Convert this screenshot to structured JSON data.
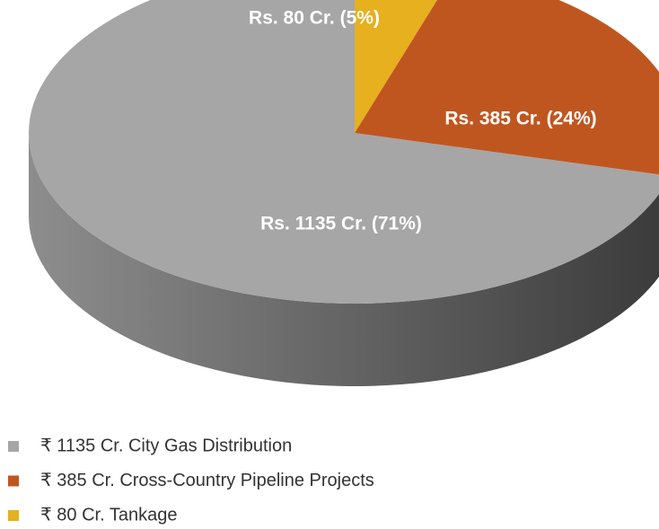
{
  "chart_data": {
    "type": "pie",
    "categories": [
      "₹ 1135 Cr. City Gas Distribution",
      "₹ 385 Cr. Cross-Country Pipeline Projects",
      "₹ 80 Cr. Tankage"
    ],
    "values": [
      1135,
      385,
      80
    ],
    "value_labels": [
      "Rs. 1135 Cr. (71%)",
      "Rs. 385 Cr. (24%)",
      "Rs. 80 Cr. (5%)"
    ],
    "colors": [
      "#a6a6a6",
      "#c0561f",
      "#e6b01e"
    ],
    "legend": "bottom-left"
  }
}
